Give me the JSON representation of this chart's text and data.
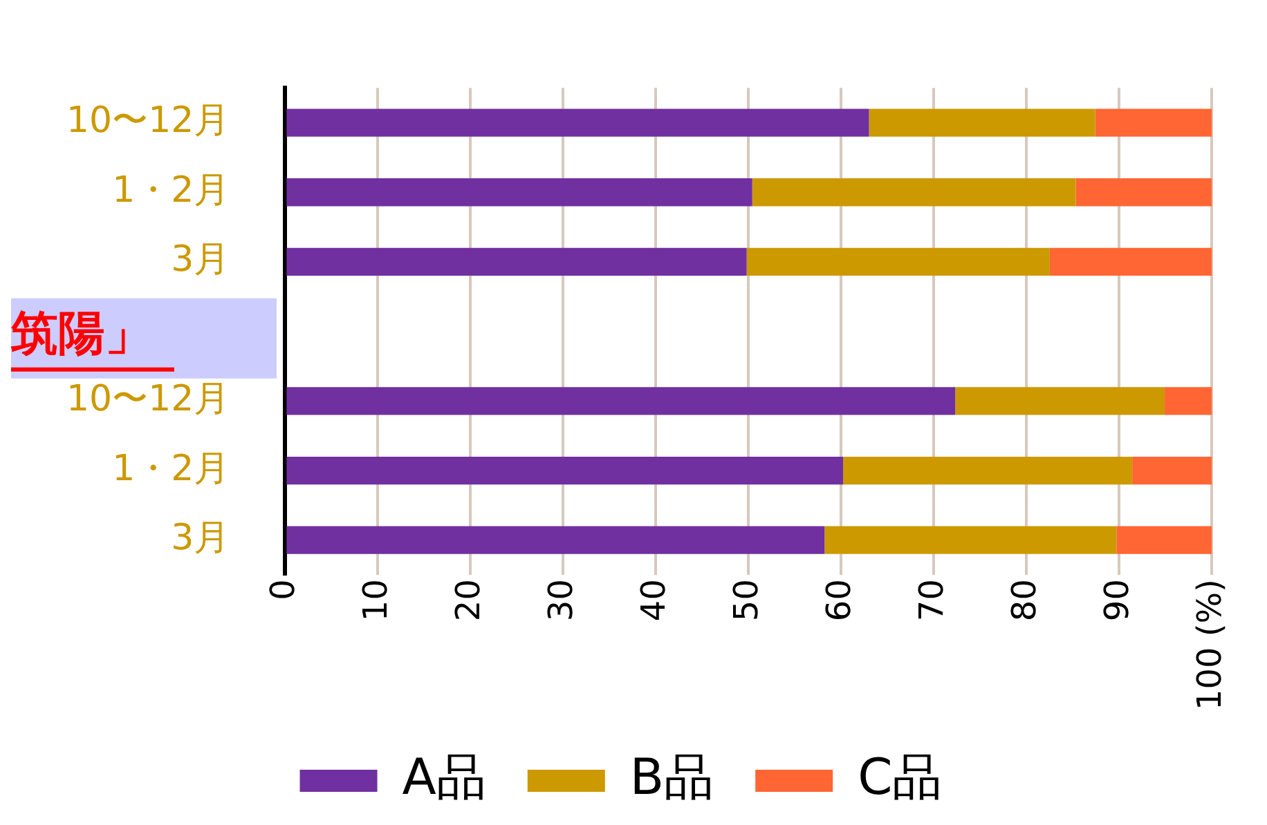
{
  "chart_data": {
    "type": "bar",
    "orientation": "horizontal",
    "stacked": true,
    "categories": [
      "10〜12月",
      "1・2月",
      "3月",
      null,
      "10〜12月",
      "1・2月",
      "3月"
    ],
    "series": [
      {
        "name": "A品",
        "color": "#7030a0",
        "values": [
          63,
          50.4,
          49.8,
          null,
          72.3,
          60.2,
          58.2
        ]
      },
      {
        "name": "B品",
        "color": "#cc9900",
        "values": [
          24.4,
          34.9,
          32.7,
          null,
          22.6,
          31.2,
          31.5
        ]
      },
      {
        "name": "C品",
        "color": "#ff6633",
        "values": [
          12.6,
          14.7,
          17.5,
          null,
          5.1,
          8.6,
          10.3
        ]
      }
    ],
    "xlim": [
      0,
      100
    ],
    "xticks": [
      0,
      10,
      20,
      30,
      40,
      50,
      60,
      70,
      80,
      90,
      {
        "value": 100,
        "label": "100 (%)"
      }
    ],
    "grid": "x",
    "legend": "bottom",
    "annotations": [
      "筑陽」"
    ]
  }
}
